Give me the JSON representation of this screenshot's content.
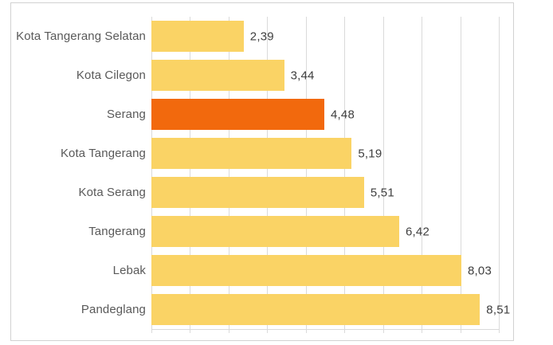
{
  "chart_data": {
    "type": "bar",
    "orientation": "horizontal",
    "title": "",
    "xlabel": "",
    "ylabel": "",
    "categories": [
      "Kota Tangerang Selatan",
      "Kota Cilegon",
      "Serang",
      "Kota Tangerang",
      "Kota Serang",
      "Tangerang",
      "Lebak",
      "Pandeglang"
    ],
    "values": [
      2.39,
      3.44,
      4.48,
      5.19,
      5.51,
      6.42,
      8.03,
      8.51
    ],
    "value_labels": [
      "2,39",
      "3,44",
      "4,48",
      "5,19",
      "5,51",
      "6,42",
      "8,03",
      "8,51"
    ],
    "decimal_separator": ",",
    "highlighted_category": "Serang",
    "highlight_index": 2,
    "xlim": [
      0,
      9
    ],
    "gridline_step": 1,
    "grid": true,
    "legend_position": "none",
    "colors": {
      "bar_default": "#FAD365",
      "bar_highlight": "#F2690D",
      "gridline": "#DADADA",
      "frame_border": "#D2D2D2",
      "category_label_text": "#595959",
      "value_label_text": "#3F3F3F",
      "background": "#FFFFFF"
    }
  }
}
